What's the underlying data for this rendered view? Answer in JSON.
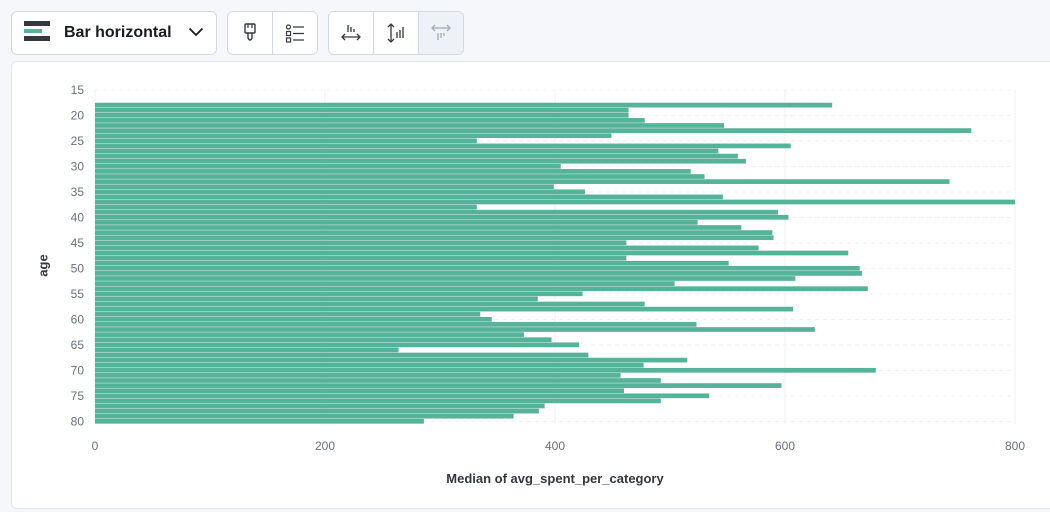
{
  "toolbar": {
    "chart_type_label": "Bar horizontal",
    "chart_type_icon": "bar-horizontal-icon",
    "group1": [
      "paintbrush-icon",
      "legend-list-icon"
    ],
    "group2": [
      "x-axis-icon",
      "y-axis-icon",
      "x-axis-secondary-icon"
    ]
  },
  "colors": {
    "bar": "#54b399",
    "grid": "#eef0f3"
  },
  "chart_data": {
    "type": "bar",
    "orientation": "horizontal",
    "title": "",
    "xlabel": "Median of avg_spent_per_category",
    "ylabel": "age",
    "xlim": [
      0,
      800
    ],
    "ylim": [
      15,
      81
    ],
    "x_ticks": [
      0,
      200,
      400,
      600,
      800
    ],
    "y_ticks": [
      15,
      20,
      25,
      30,
      35,
      40,
      45,
      50,
      55,
      60,
      65,
      70,
      75,
      80
    ],
    "grid": true,
    "categories": [
      18,
      19,
      20,
      21,
      22,
      23,
      24,
      25,
      26,
      27,
      28,
      29,
      30,
      31,
      32,
      33,
      34,
      35,
      36,
      37,
      38,
      39,
      40,
      41,
      42,
      43,
      44,
      45,
      46,
      47,
      48,
      49,
      50,
      51,
      52,
      53,
      54,
      55,
      56,
      57,
      58,
      59,
      60,
      61,
      62,
      63,
      64,
      65,
      66,
      67,
      68,
      69,
      70,
      71,
      72,
      73,
      74,
      75,
      76,
      77,
      78,
      79,
      80
    ],
    "values": [
      641,
      464,
      464,
      478,
      547,
      762,
      449,
      332,
      605,
      542,
      559,
      566,
      405,
      518,
      530,
      743,
      399,
      426,
      546,
      800,
      332,
      594,
      603,
      524,
      562,
      589,
      590,
      462,
      577,
      655,
      462,
      551,
      665,
      667,
      609,
      504,
      672,
      424,
      385,
      478,
      607,
      335,
      345,
      523,
      626,
      373,
      397,
      421,
      264,
      429,
      515,
      477,
      679,
      457,
      492,
      597,
      460,
      534,
      492,
      391,
      386,
      364,
      286
    ]
  }
}
